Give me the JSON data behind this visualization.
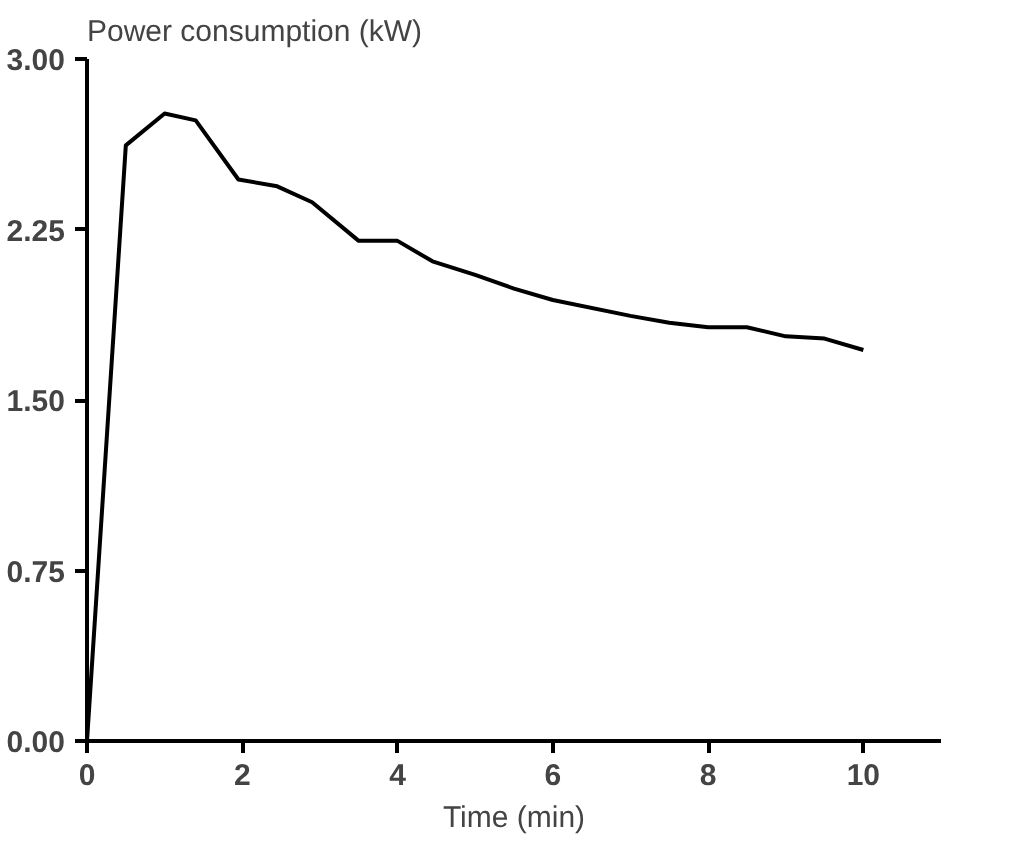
{
  "chart_data": {
    "type": "line",
    "ylabel": "Power consumption (kW)",
    "xlabel": "Time (min)",
    "x": [
      0,
      0.5,
      1,
      1.4,
      1.95,
      2.45,
      2.9,
      3.5,
      4,
      4.45,
      5,
      5.5,
      6,
      7,
      7.5,
      8,
      8.5,
      9,
      9.5,
      10
    ],
    "series": [
      {
        "color": "#000000",
        "values": [
          0,
          2.62,
          2.76,
          2.73,
          2.47,
          2.44,
          2.37,
          2.2,
          2.2,
          2.11,
          2.05,
          1.99,
          1.94,
          1.87,
          1.84,
          1.82,
          1.82,
          1.78,
          1.77,
          1.72
        ]
      }
    ],
    "xlim": [
      0,
      11
    ],
    "ylim": [
      0,
      3
    ],
    "xticks": [
      0,
      2,
      4,
      6,
      8,
      10
    ],
    "yticks": [
      {
        "value": 0,
        "label": "0.00"
      },
      {
        "value": 0.75,
        "label": "0.75"
      },
      {
        "value": 1.5,
        "label": "1.50"
      },
      {
        "value": 2.25,
        "label": "2.25"
      },
      {
        "value": 3,
        "label": "3.00"
      }
    ],
    "grid": false,
    "marker": "none",
    "line_style": "solid"
  }
}
